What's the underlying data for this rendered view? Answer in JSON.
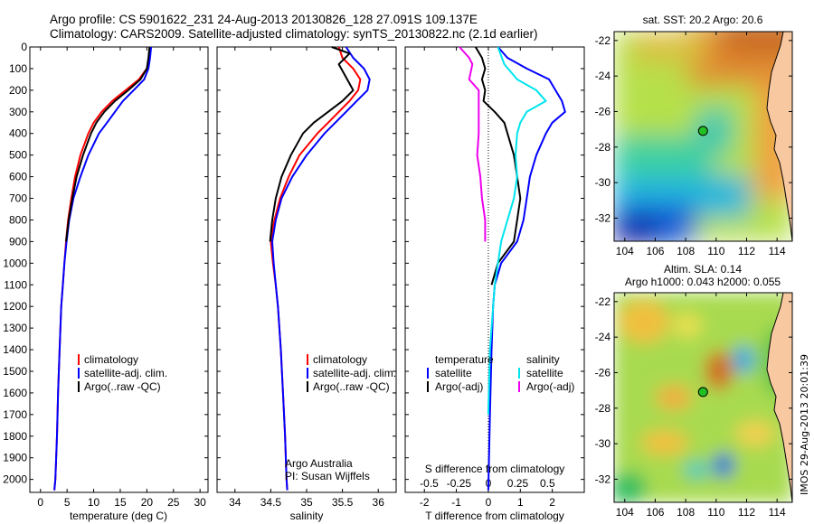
{
  "header": {
    "title_line1": "Argo profile: CS 5901622_231 24-Aug-2013 20130826_128 27.091S 109.137E",
    "title_line2": "Climatology: CARS2009. Satellite-adjusted climatology: synTS_20130822.nc (2.1d earlier)"
  },
  "colors": {
    "climatology": "#ff0000",
    "satellite": "#0000ff",
    "argo": "#000000",
    "salinity_satellite": "#00e5ee",
    "salinity_argo": "#ee00ee",
    "land": "#f8c8a0"
  },
  "depth_axis": {
    "min": 0,
    "max": 2060,
    "ticks": [
      0,
      100,
      200,
      300,
      400,
      500,
      600,
      700,
      800,
      900,
      1000,
      1100,
      1200,
      1300,
      1400,
      1500,
      1600,
      1700,
      1800,
      1900,
      2000
    ]
  },
  "chart_data": [
    {
      "type": "line",
      "xlabel": "temperature (deg C)",
      "xlim": [
        -2,
        31.5
      ],
      "xticks": [
        0,
        5,
        10,
        15,
        20,
        25,
        30
      ],
      "legend": [
        "climatology",
        "satellite-adj. clim.",
        "Argo(..raw -QC)"
      ],
      "legend_position": "lower-middle",
      "series": [
        {
          "name": "climatology",
          "color": "#ff0000",
          "x": [
            20.6,
            20.4,
            20.0,
            18.5,
            16.0,
            13.5,
            11.5,
            10.0,
            9.0,
            7.5,
            6.5,
            5.8,
            5.2,
            4.8,
            4.5,
            4.2,
            3.9,
            3.6,
            3.3,
            3.1,
            2.8,
            2.6
          ],
          "depth": [
            0,
            50,
            100,
            150,
            200,
            250,
            300,
            350,
            400,
            500,
            600,
            700,
            800,
            900,
            1000,
            1100,
            1200,
            1400,
            1600,
            1800,
            2000,
            2050
          ]
        },
        {
          "name": "satellite-adj. clim.",
          "color": "#0000ff",
          "x": [
            20.8,
            20.6,
            20.3,
            19.5,
            17.5,
            15.5,
            14.0,
            12.5,
            11.0,
            9.0,
            7.5,
            6.2,
            5.4,
            4.9,
            4.5,
            4.2,
            3.9,
            3.6,
            3.3,
            3.1,
            2.8,
            2.6
          ],
          "depth": [
            0,
            50,
            100,
            150,
            200,
            250,
            300,
            350,
            400,
            500,
            600,
            700,
            800,
            900,
            1000,
            1100,
            1200,
            1400,
            1600,
            1800,
            2000,
            2050
          ]
        },
        {
          "name": "Argo(..raw -QC)",
          "color": "#000000",
          "x": [
            20.5,
            20.3,
            20.0,
            18.8,
            16.5,
            14.0,
            12.0,
            10.5,
            9.5,
            8.0,
            6.8,
            6.0,
            5.3,
            4.8
          ],
          "depth": [
            0,
            50,
            100,
            150,
            200,
            250,
            300,
            350,
            400,
            500,
            600,
            700,
            800,
            900
          ]
        }
      ]
    },
    {
      "type": "line",
      "xlabel": "salinity",
      "xlim": [
        33.75,
        36.25
      ],
      "xticks": [
        34,
        34.5,
        35,
        35.5,
        36
      ],
      "legend": [
        "climatology",
        "satellite-adj. clim.",
        "Argo(..raw -QC)"
      ],
      "legend_position": "lower-right",
      "annotations": [
        "Argo Australia",
        "PI: Susan Wijffels"
      ],
      "series": [
        {
          "name": "climatology",
          "color": "#ff0000",
          "x": [
            35.45,
            35.5,
            35.65,
            35.75,
            35.72,
            35.6,
            35.45,
            35.3,
            35.15,
            34.9,
            34.75,
            34.63,
            34.55,
            34.5,
            34.53,
            34.57,
            34.6,
            34.64,
            34.67,
            34.7,
            34.72,
            34.73
          ],
          "depth": [
            0,
            50,
            100,
            150,
            200,
            250,
            300,
            350,
            400,
            500,
            600,
            700,
            800,
            900,
            1000,
            1100,
            1200,
            1400,
            1600,
            1800,
            2000,
            2050
          ]
        },
        {
          "name": "satellite-adj. clim.",
          "color": "#0000ff",
          "x": [
            35.55,
            35.65,
            35.8,
            35.88,
            35.85,
            35.7,
            35.55,
            35.4,
            35.25,
            35.0,
            34.8,
            34.65,
            34.57,
            34.52,
            34.54,
            34.57,
            34.6,
            34.64,
            34.67,
            34.7,
            34.72,
            34.73
          ],
          "depth": [
            0,
            50,
            100,
            150,
            200,
            250,
            300,
            350,
            400,
            500,
            600,
            700,
            800,
            900,
            1000,
            1100,
            1200,
            1400,
            1600,
            1800,
            2000,
            2050
          ]
        },
        {
          "name": "Argo(..raw -QC)",
          "color": "#000000",
          "x": [
            35.35,
            35.6,
            35.45,
            35.55,
            35.65,
            35.5,
            35.3,
            35.1,
            34.95,
            34.78,
            34.65,
            34.57,
            34.52,
            34.49
          ],
          "depth": [
            0,
            30,
            80,
            140,
            200,
            250,
            300,
            350,
            400,
            500,
            600,
            700,
            800,
            900
          ]
        }
      ]
    },
    {
      "type": "line",
      "xlabel": "T difference from climatology",
      "xlim": [
        -2.6,
        3.0
      ],
      "xticks": [
        -2,
        -1,
        0,
        1,
        2
      ],
      "top_axis_label": "S difference from climatology",
      "top_ticks": [
        {
          "label": "-0.5",
          "T": -1.85
        },
        {
          "label": "-0.25",
          "T": -0.92
        },
        {
          "label": "0",
          "T": 0
        },
        {
          "label": "0.25",
          "T": 0.92
        },
        {
          "label": "0.5",
          "T": 1.85
        }
      ],
      "legend_temperature_title": "temperature",
      "legend_salinity_title": "salinity",
      "legend_temperature": [
        "satellite",
        "Argo(-adj)"
      ],
      "legend_salinity": [
        "satellite",
        "Argo(-adj)"
      ],
      "series": [
        {
          "name": "satellite",
          "color": "#0000ff",
          "x": [
            0.3,
            0.6,
            1.2,
            1.9,
            2.1,
            2.3,
            2.4,
            2.0,
            1.8,
            1.5,
            1.3,
            1.2,
            1.1,
            0.9,
            0.4,
            0.2,
            0.15,
            0.1,
            0.05,
            0.0
          ],
          "depth": [
            0,
            50,
            100,
            150,
            200,
            250,
            300,
            350,
            400,
            500,
            600,
            700,
            800,
            900,
            1000,
            1100,
            1200,
            1400,
            1700,
            2050
          ]
        },
        {
          "name": "Argo(-adj)",
          "color": "#000000",
          "x": [
            -0.4,
            -0.2,
            -0.1,
            -0.2,
            -0.1,
            -0.15,
            0.2,
            0.5,
            0.6,
            0.8,
            0.9,
            1.0,
            0.9,
            0.8,
            0.3,
            0.1
          ],
          "depth": [
            0,
            50,
            100,
            150,
            200,
            250,
            300,
            350,
            400,
            500,
            600,
            700,
            800,
            900,
            1000,
            1100
          ]
        },
        {
          "name": "salinity satellite",
          "color": "#00e5ee",
          "x": [
            0.3,
            0.5,
            0.9,
            1.5,
            1.8,
            1.2,
            1.0,
            0.9,
            0.85,
            0.9,
            0.8,
            0.4,
            0.2,
            0.05,
            0.0
          ],
          "depth": [
            0,
            80,
            150,
            200,
            250,
            300,
            350,
            400,
            500,
            600,
            700,
            900,
            1100,
            1400,
            1700
          ]
        },
        {
          "name": "salinity Argo(-adj)",
          "color": "#ee00ee",
          "x": [
            -0.9,
            -0.6,
            -0.5,
            -0.6,
            -0.3,
            -0.3,
            -0.3,
            -0.35,
            -0.25,
            -0.2,
            -0.1,
            -0.1
          ],
          "depth": [
            0,
            50,
            80,
            150,
            200,
            300,
            400,
            500,
            600,
            700,
            800,
            900
          ]
        }
      ]
    },
    {
      "type": "heatmap",
      "title": "sat. SST: 20.2 Argo: 20.6",
      "xticks": [
        104,
        106,
        108,
        110,
        112,
        114
      ],
      "yticks": [
        -22,
        -24,
        -26,
        -28,
        -30,
        -32
      ],
      "xlim": [
        103.3,
        115.0
      ],
      "ylim": [
        -33.3,
        -21.5
      ],
      "argo_position": {
        "lon": 109.137,
        "lat": -27.091
      }
    },
    {
      "type": "heatmap",
      "title_line1": "Altim. SLA: 0.14",
      "title_line2": "Argo h1000: 0.043 h2000: 0.055",
      "xticks": [
        104,
        106,
        108,
        110,
        112,
        114
      ],
      "yticks": [
        -22,
        -24,
        -26,
        -28,
        -30,
        -32
      ],
      "xlim": [
        103.3,
        115.0
      ],
      "ylim": [
        -33.3,
        -21.5
      ],
      "argo_position": {
        "lon": 109.137,
        "lat": -27.091
      }
    }
  ],
  "watermark": "IMOS 29-Aug-2013 20:01:39"
}
